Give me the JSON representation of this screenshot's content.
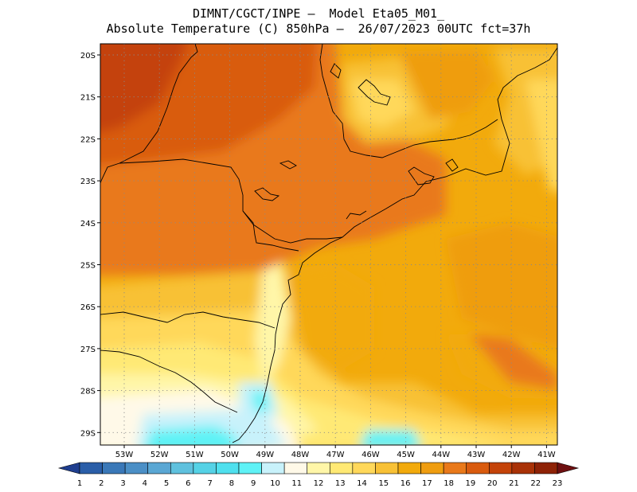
{
  "header": {
    "line1": "DIMNT/CGCT/INPE –  Model Eta05_M01_",
    "line2": "Absolute Temperature (C) 850hPa –  26/07/2023 00UTC fct=37h"
  },
  "map": {
    "lat_labels": [
      "20S",
      "21S",
      "22S",
      "23S",
      "24S",
      "25S",
      "26S",
      "27S",
      "28S",
      "29S"
    ],
    "lon_labels": [
      "53W",
      "52W",
      "51W",
      "50W",
      "49W",
      "48W",
      "47W",
      "46W",
      "45W",
      "44W",
      "43W",
      "42W",
      "41W"
    ],
    "gridlines": "dotted",
    "lon_range": [
      -53.7,
      -40.5
    ],
    "lat_range": [
      -29.4,
      -19.7
    ]
  },
  "colorbar": {
    "labels": [
      "1",
      "2",
      "3",
      "4",
      "5",
      "6",
      "7",
      "8",
      "9",
      "10",
      "11",
      "12",
      "13",
      "14",
      "15",
      "16",
      "17",
      "18",
      "19",
      "20",
      "21",
      "22",
      "23"
    ],
    "colors": [
      "#1f3e8f",
      "#2a5ea8",
      "#3a78b8",
      "#4b8fc6",
      "#5aa7d4",
      "#5fc1de",
      "#55d2e6",
      "#4fe0ee",
      "#5ff2f6",
      "#c8f2fb",
      "#fff9e8",
      "#fff6a8",
      "#ffe974",
      "#ffd85a",
      "#f8c136",
      "#f2aa0c",
      "#ef9d10",
      "#e9791a",
      "#d95b0e",
      "#c44309",
      "#a93207",
      "#8e2206",
      "#6e0f10"
    ]
  }
}
